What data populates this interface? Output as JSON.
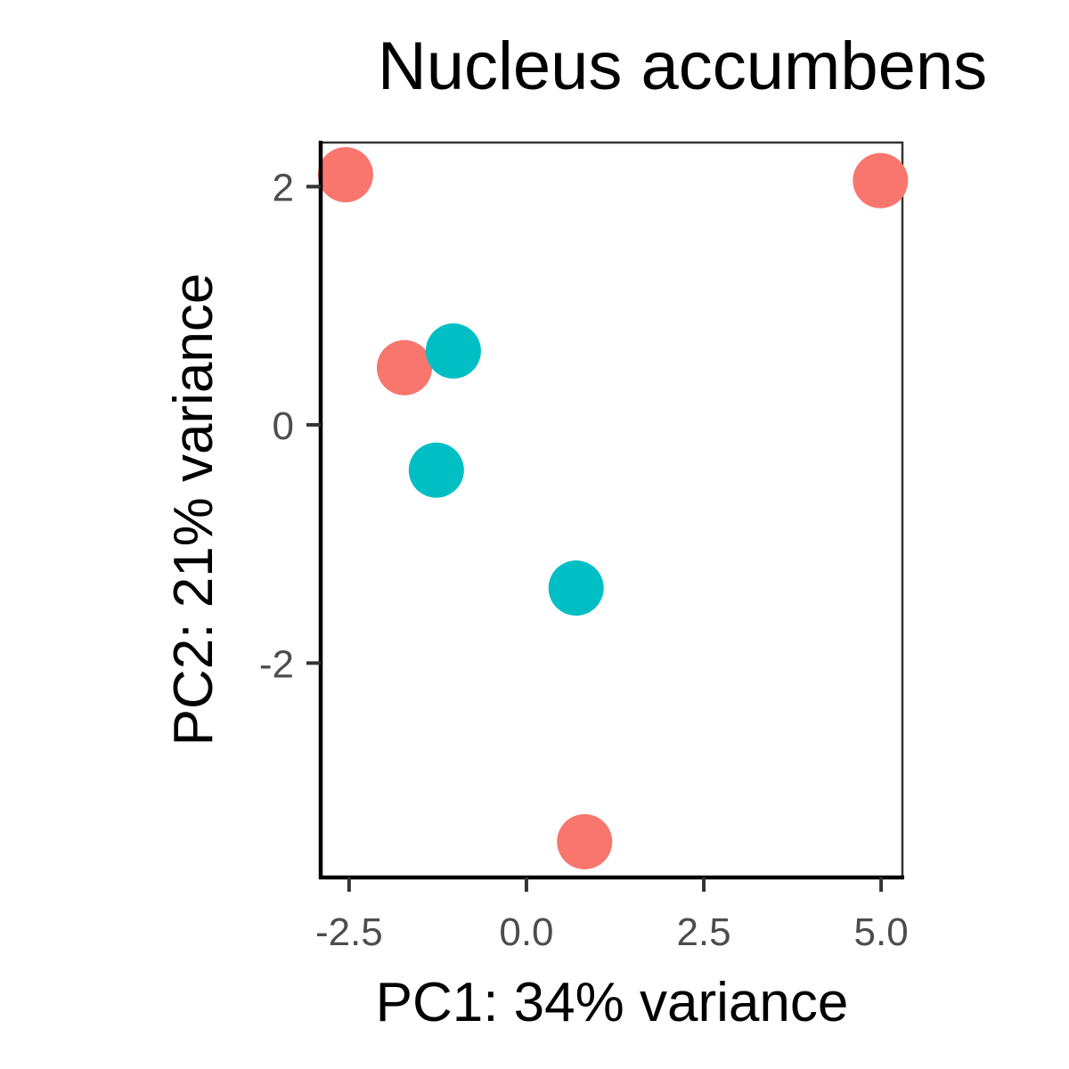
{
  "chart_data": {
    "type": "scatter",
    "title": "Nucleus accumbens",
    "xlabel": "PC1: 34% variance",
    "ylabel": "PC2: 21% variance",
    "xlim": [
      -2.9,
      5.3
    ],
    "ylim": [
      -3.8,
      2.37
    ],
    "xticks": [
      {
        "value": -2.5,
        "label": "-2.5"
      },
      {
        "value": 0.0,
        "label": "0.0"
      },
      {
        "value": 2.5,
        "label": "2.5"
      },
      {
        "value": 5.0,
        "label": "5.0"
      }
    ],
    "yticks": [
      {
        "value": 2,
        "label": "2"
      },
      {
        "value": 0,
        "label": "0"
      },
      {
        "value": -2,
        "label": "-2"
      }
    ],
    "grid": false,
    "legend": "none",
    "colors": [
      "#F8766D",
      "#00BFC4"
    ],
    "points": [
      {
        "x": -2.55,
        "y": 2.1,
        "group": 0
      },
      {
        "x": 4.99,
        "y": 2.05,
        "group": 0
      },
      {
        "x": -1.72,
        "y": 0.48,
        "group": 0
      },
      {
        "x": 0.82,
        "y": -3.5,
        "group": 0
      },
      {
        "x": -1.03,
        "y": 0.62,
        "group": 1
      },
      {
        "x": -1.27,
        "y": -0.38,
        "group": 1
      },
      {
        "x": 0.7,
        "y": -1.37,
        "group": 1
      }
    ]
  }
}
